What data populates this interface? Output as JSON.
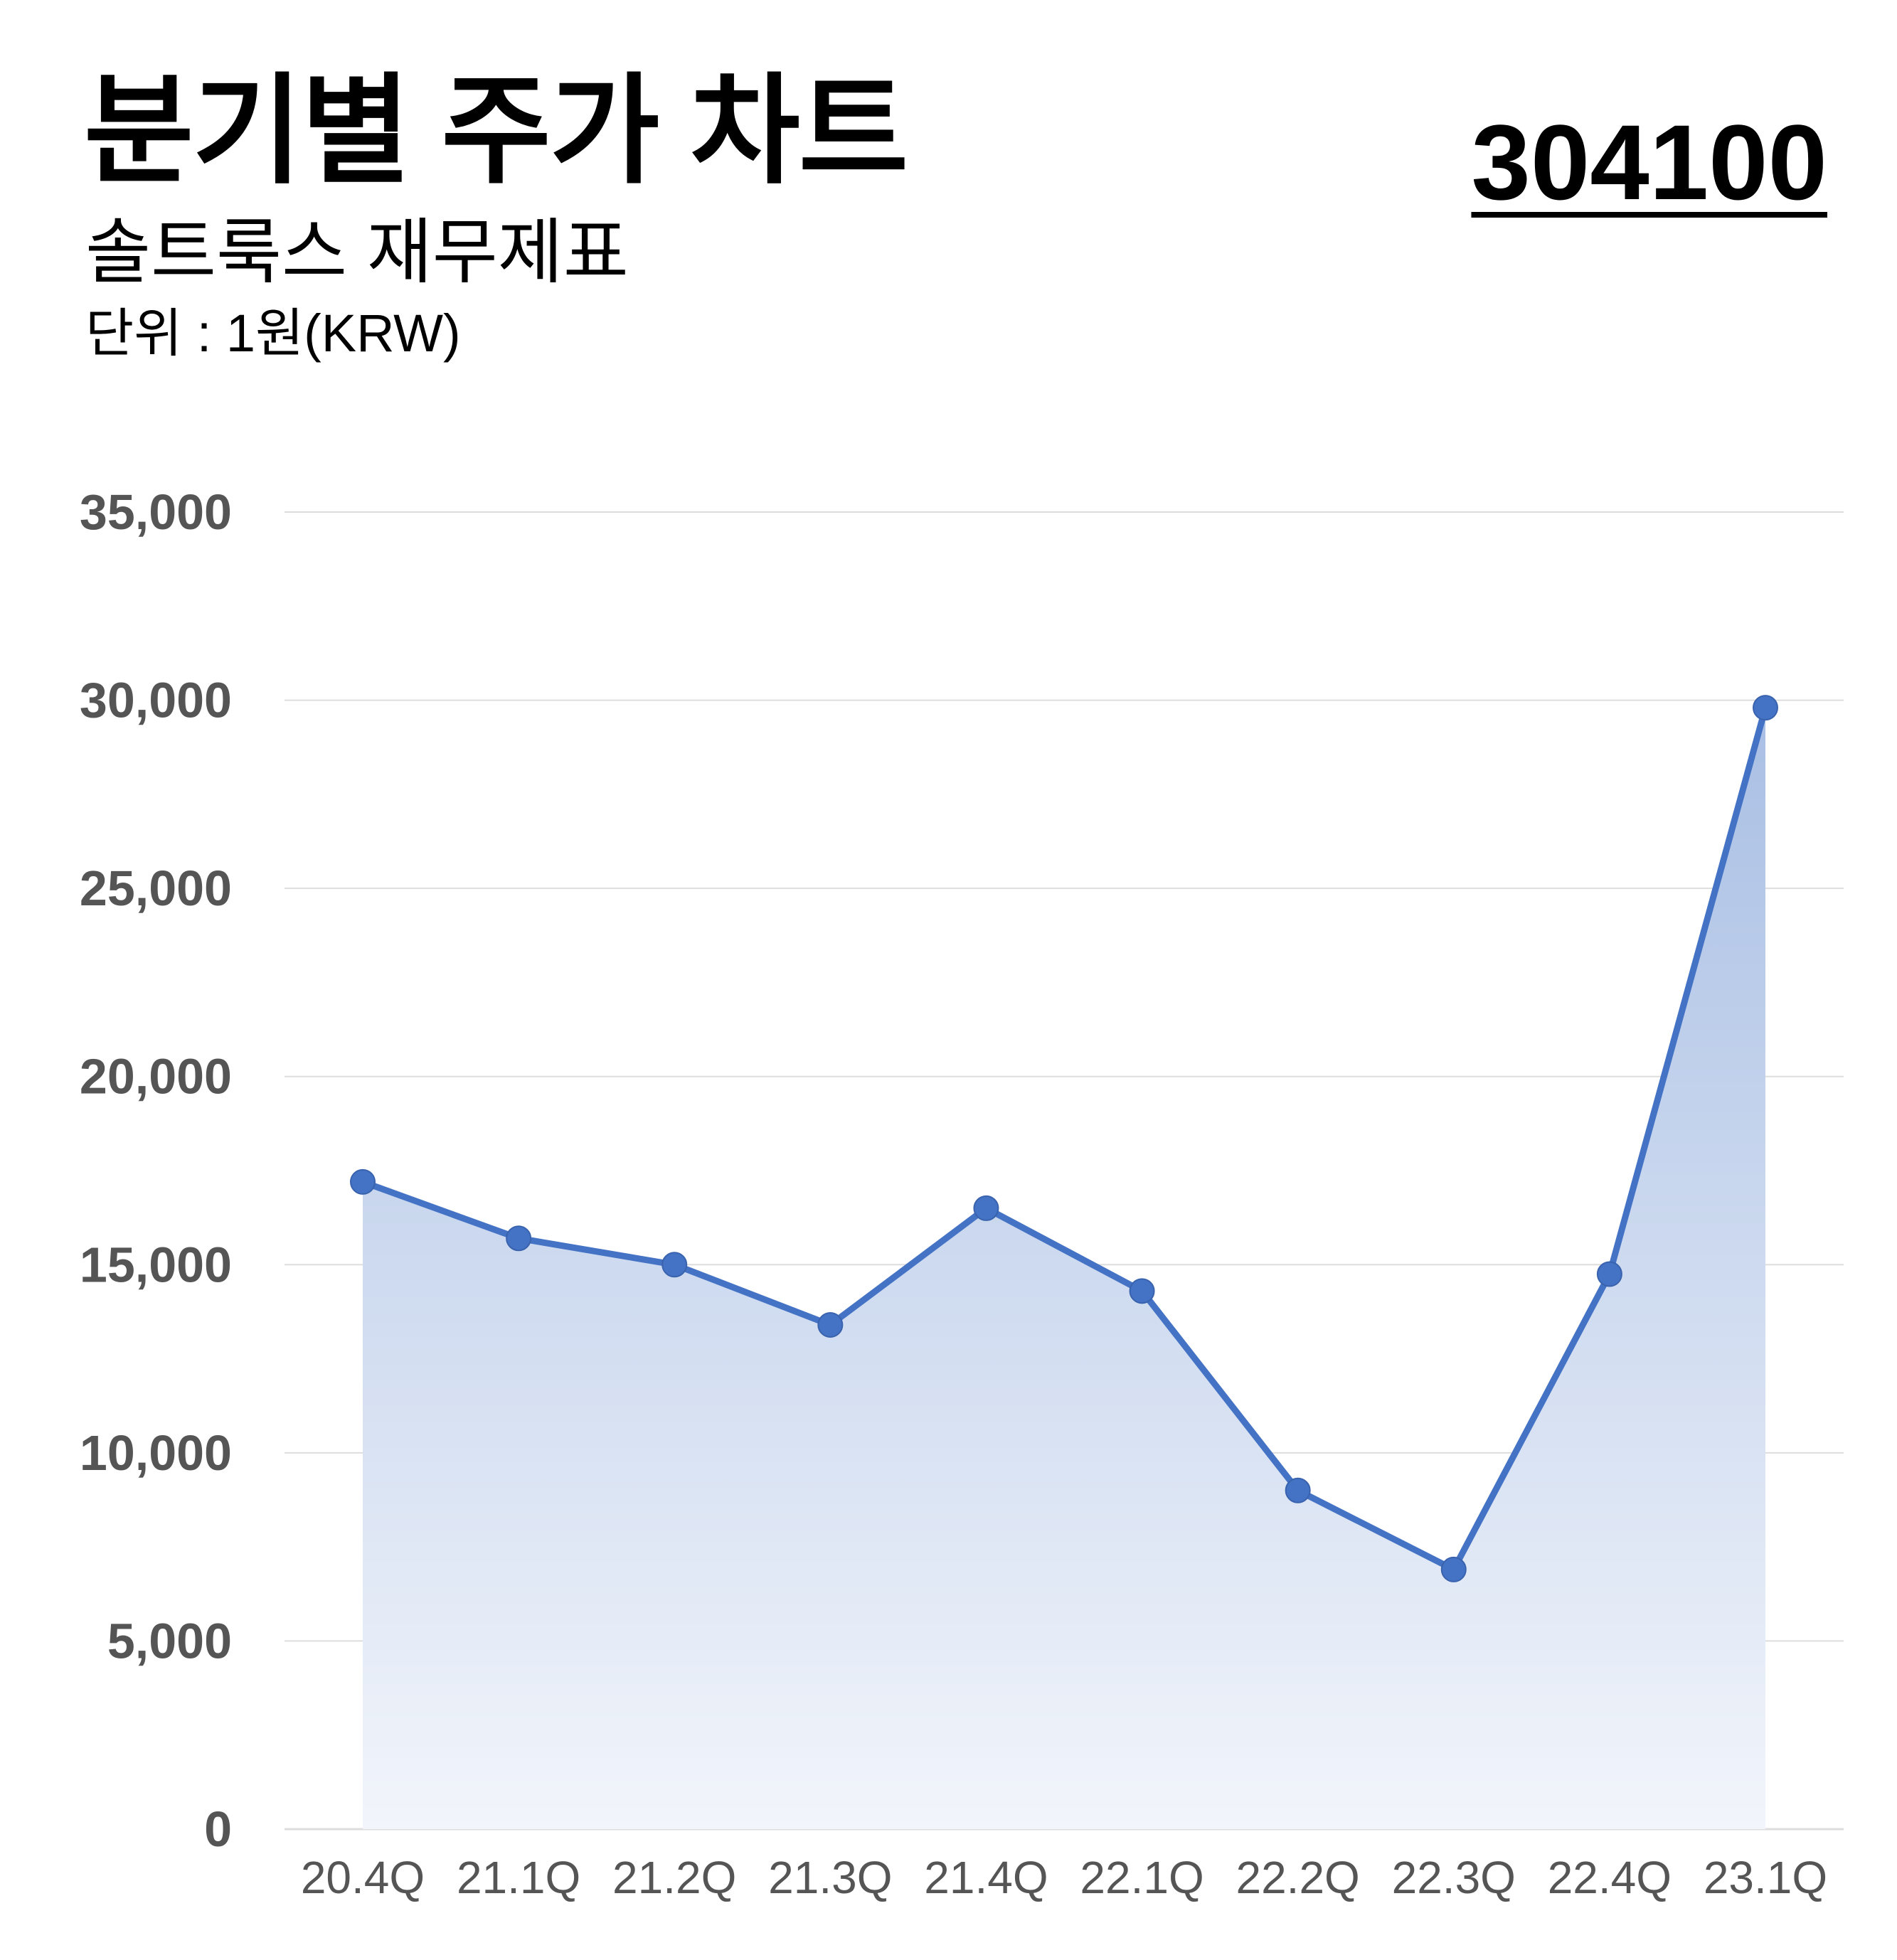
{
  "header": {
    "title": "분기별 주가 차트",
    "subtitle": "솔트룩스 재무제표",
    "unit": "단위 : 1원(KRW)",
    "stock_code": "304100"
  },
  "colors": {
    "line": "#4472C4",
    "fill_top": "#A9BFE4",
    "fill_bottom": "#F2F5FB",
    "grid": "#DDDDDD",
    "tick_text": "#555555"
  },
  "chart_data": {
    "type": "area",
    "title": "분기별 주가 차트",
    "categories": [
      "20.4Q",
      "21.1Q",
      "21.2Q",
      "21.3Q",
      "21.4Q",
      "22.1Q",
      "22.2Q",
      "22.3Q",
      "22.4Q",
      "23.1Q"
    ],
    "series": [
      {
        "values": [
          17200,
          15700,
          15000,
          13400,
          16500,
          14300,
          9000,
          6900,
          14750,
          29800
        ]
      }
    ],
    "y_ticks": [
      "0",
      "5,000",
      "10,000",
      "15,000",
      "20,000",
      "25,000",
      "30,000",
      "35,000"
    ],
    "ylim": [
      0,
      35000
    ],
    "grid": true,
    "legend": "none",
    "markers": true
  }
}
